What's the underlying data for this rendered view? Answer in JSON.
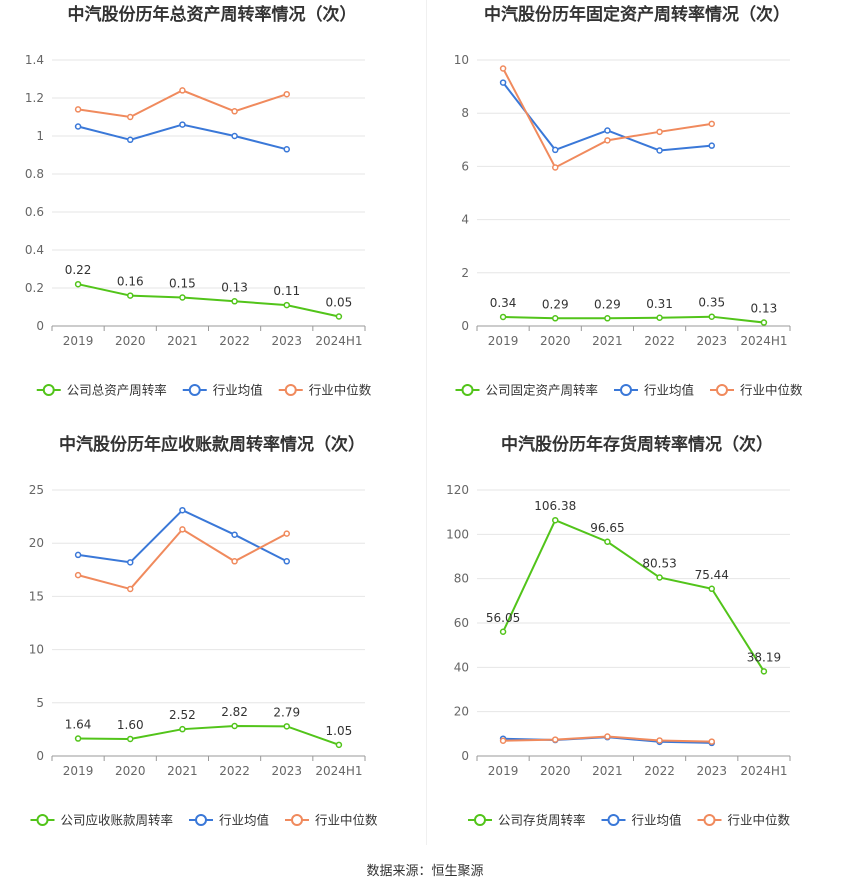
{
  "source_text": "数据来源：恒生聚源",
  "colors": {
    "company": "#52c41a",
    "avg": "#3a78d8",
    "median": "#f08a5d",
    "grid": "#e6e6e6",
    "axis": "#999999"
  },
  "chart_data": [
    {
      "type": "line",
      "title": "中汽股份历年总资产周转率情况（次）",
      "categories": [
        "2019",
        "2020",
        "2021",
        "2022",
        "2023",
        "2024H1"
      ],
      "yticks": [
        "0",
        "0.2",
        "0.4",
        "0.6",
        "0.8",
        "1",
        "1.2",
        "1.4"
      ],
      "ylim": [
        0,
        1.4
      ],
      "series": [
        {
          "name": "公司总资产周转率",
          "values": [
            0.22,
            0.16,
            0.15,
            0.13,
            0.11,
            0.05
          ],
          "labels": [
            "0.22",
            "0.16",
            "0.15",
            "0.13",
            "0.11",
            "0.05"
          ]
        },
        {
          "name": "行业均值",
          "values": [
            1.05,
            0.98,
            1.06,
            1.0,
            0.93,
            null
          ]
        },
        {
          "name": "行业中位数",
          "values": [
            1.14,
            1.1,
            1.24,
            1.13,
            1.22,
            null
          ]
        }
      ],
      "grid": true,
      "legend_position": "bottom"
    },
    {
      "type": "line",
      "title": "中汽股份历年固定资产周转率情况（次）",
      "categories": [
        "2019",
        "2020",
        "2021",
        "2022",
        "2023",
        "2024H1"
      ],
      "yticks": [
        "0",
        "2",
        "4",
        "6",
        "8",
        "10"
      ],
      "ylim": [
        0,
        10
      ],
      "series": [
        {
          "name": "公司固定资产周转率",
          "values": [
            0.34,
            0.29,
            0.29,
            0.31,
            0.35,
            0.13
          ],
          "labels": [
            "0.34",
            "0.29",
            "0.29",
            "0.31",
            "0.35",
            "0.13"
          ]
        },
        {
          "name": "行业均值",
          "values": [
            9.15,
            6.62,
            7.35,
            6.6,
            6.78,
            null
          ]
        },
        {
          "name": "行业中位数",
          "values": [
            9.68,
            5.96,
            6.98,
            7.3,
            7.6,
            null
          ]
        }
      ],
      "grid": true,
      "legend_position": "bottom"
    },
    {
      "type": "line",
      "title": "中汽股份历年应收账款周转率情况（次）",
      "categories": [
        "2019",
        "2020",
        "2021",
        "2022",
        "2023",
        "2024H1"
      ],
      "yticks": [
        "0",
        "5",
        "10",
        "15",
        "20",
        "25"
      ],
      "ylim": [
        0,
        25
      ],
      "series": [
        {
          "name": "公司应收账款周转率",
          "values": [
            1.64,
            1.6,
            2.52,
            2.82,
            2.79,
            1.05
          ],
          "labels": [
            "1.64",
            "1.60",
            "2.52",
            "2.82",
            "2.79",
            "1.05"
          ]
        },
        {
          "name": "行业均值",
          "values": [
            18.9,
            18.2,
            23.1,
            20.8,
            18.3,
            null
          ]
        },
        {
          "name": "行业中位数",
          "values": [
            17.0,
            15.7,
            21.3,
            18.3,
            20.9,
            null
          ]
        }
      ],
      "grid": true,
      "legend_position": "bottom"
    },
    {
      "type": "line",
      "title": "中汽股份历年存货周转率情况（次）",
      "categories": [
        "2019",
        "2020",
        "2021",
        "2022",
        "2023",
        "2024H1"
      ],
      "yticks": [
        "0",
        "20",
        "40",
        "60",
        "80",
        "100",
        "120"
      ],
      "ylim": [
        0,
        120
      ],
      "series": [
        {
          "name": "公司存货周转率",
          "values": [
            56.05,
            106.38,
            96.65,
            80.53,
            75.44,
            38.19
          ],
          "labels": [
            "56.05",
            "106.38",
            "96.65",
            "80.53",
            "75.44",
            "38.19"
          ]
        },
        {
          "name": "行业均值",
          "values": [
            7.8,
            7.2,
            8.5,
            6.4,
            5.9,
            null
          ]
        },
        {
          "name": "行业中位数",
          "values": [
            6.9,
            7.4,
            8.8,
            7.0,
            6.5,
            null
          ]
        }
      ],
      "grid": true,
      "legend_position": "bottom"
    }
  ]
}
